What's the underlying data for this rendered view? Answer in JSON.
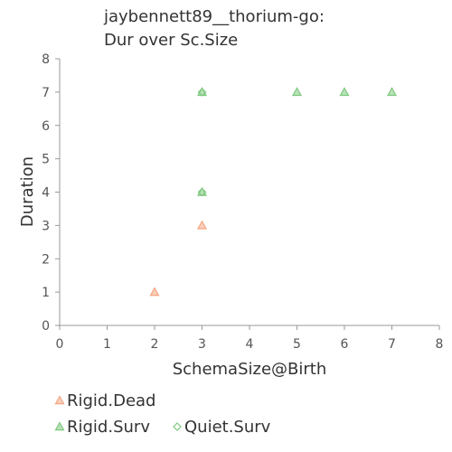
{
  "chart_data": {
    "type": "scatter",
    "title": [
      "jaybennett89__thorium-go:",
      "Dur over Sc.Size"
    ],
    "xlabel": "SchemaSize@Birth",
    "ylabel": "Duration",
    "xlim": [
      0,
      8
    ],
    "ylim": [
      0,
      8
    ],
    "xticks": [
      "0",
      "1",
      "2",
      "3",
      "4",
      "5",
      "6",
      "7",
      "8"
    ],
    "yticks": [
      "0",
      "1",
      "2",
      "3",
      "4",
      "5",
      "6",
      "7",
      "8"
    ],
    "grid": false,
    "legend_position": "bottom-left",
    "series": [
      {
        "name": "Rigid.Dead",
        "marker": "triangle",
        "color": "#f4a582",
        "points": [
          [
            2,
            1
          ],
          [
            3,
            3
          ]
        ]
      },
      {
        "name": "Rigid.Surv",
        "marker": "triangle",
        "color": "#7fc97f",
        "points": [
          [
            3,
            4
          ],
          [
            3,
            7
          ],
          [
            5,
            7
          ],
          [
            6,
            7
          ],
          [
            7,
            7
          ]
        ]
      },
      {
        "name": "Quiet.Surv",
        "marker": "diamond",
        "color": "#7fc97f",
        "points": [
          [
            3,
            7
          ],
          [
            3,
            4
          ]
        ]
      }
    ]
  }
}
